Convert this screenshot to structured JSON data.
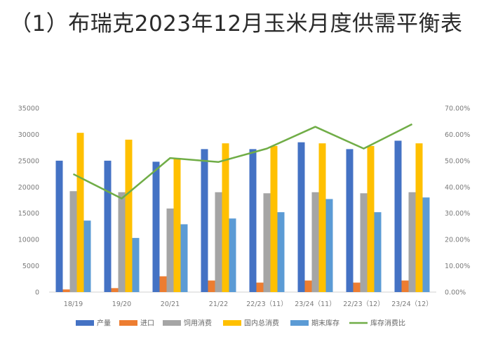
{
  "heading": "（1）布瑞克2023年12月玉米月度供需平衡表",
  "chart_data": {
    "type": "bar",
    "categories": [
      "18/19",
      "19/20",
      "20/21",
      "21/22",
      "22/23（11）",
      "23/24（11）",
      "22/23（12）",
      "23/24（12）"
    ],
    "series": [
      {
        "name": "产量",
        "kind": "bar",
        "axis": "left",
        "color": "#4472C4",
        "values": [
          25000,
          25000,
          24800,
          27200,
          27200,
          28500,
          27200,
          28800
        ]
      },
      {
        "name": "进口",
        "kind": "bar",
        "axis": "left",
        "color": "#ED7D31",
        "values": [
          500,
          750,
          3000,
          2200,
          1800,
          2200,
          1800,
          2200
        ]
      },
      {
        "name": "饲用消费",
        "kind": "bar",
        "axis": "left",
        "color": "#A5A5A5",
        "values": [
          19200,
          19000,
          15900,
          19000,
          18800,
          19000,
          18800,
          19000
        ]
      },
      {
        "name": "国内总消费",
        "kind": "bar",
        "axis": "left",
        "color": "#FFC000",
        "values": [
          30300,
          29000,
          25400,
          28300,
          27800,
          28300,
          27800,
          28300
        ]
      },
      {
        "name": "期末库存",
        "kind": "bar",
        "axis": "left",
        "color": "#5B9BD5",
        "values": [
          13600,
          10300,
          12900,
          14000,
          15200,
          17700,
          15200,
          18000
        ]
      },
      {
        "name": "库存消费比",
        "kind": "line",
        "axis": "right",
        "color": "#70AD47",
        "values": [
          44.9,
          35.6,
          51.0,
          49.5,
          54.6,
          62.9,
          54.6,
          63.9
        ]
      }
    ],
    "left_axis": {
      "min": 0,
      "max": 35000,
      "step": 5000
    },
    "right_axis": {
      "min": 0,
      "max": 70,
      "step": 10,
      "format": "percent_2dp"
    },
    "grid": false,
    "legend_position": "bottom"
  }
}
